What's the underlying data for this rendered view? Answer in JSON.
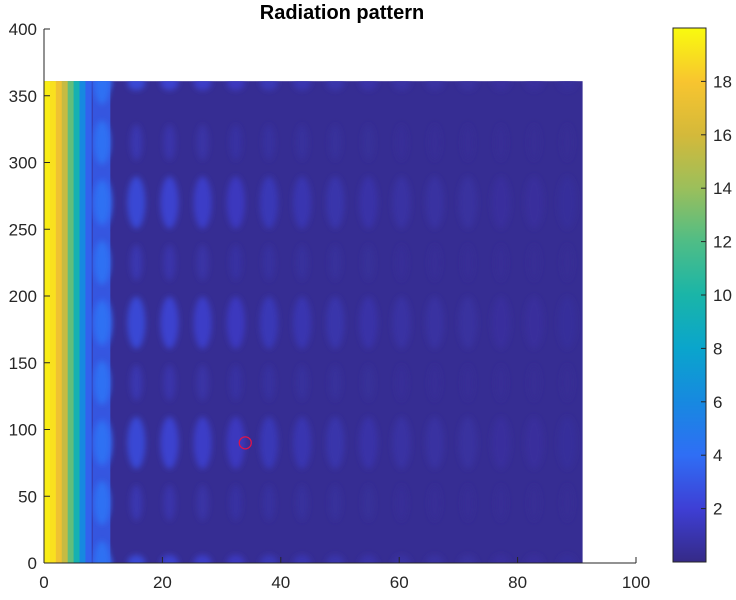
{
  "chart_data": {
    "type": "heatmap",
    "title": "Radiation pattern",
    "xlabel": "",
    "ylabel": "",
    "xlim": [
      0,
      100
    ],
    "ylim": [
      0,
      400
    ],
    "x_ticks": [
      0,
      20,
      40,
      60,
      80,
      100
    ],
    "y_ticks": [
      0,
      50,
      100,
      150,
      200,
      250,
      300,
      350,
      400
    ],
    "data_extent": {
      "x": [
        0,
        91
      ],
      "y": [
        0,
        361
      ]
    },
    "colormap": "parula",
    "color_range": [
      0,
      20
    ],
    "colorbar_ticks": [
      2,
      4,
      6,
      8,
      10,
      12,
      14,
      16,
      18
    ],
    "colorbar_location": "right",
    "grid": false,
    "edge_column_values": [
      {
        "x": 0.5,
        "value": 19.5
      },
      {
        "x": 1.5,
        "value": 19.0
      },
      {
        "x": 2.5,
        "value": 17.5
      },
      {
        "x": 3.5,
        "value": 15.5
      },
      {
        "x": 4.5,
        "value": 12.5
      },
      {
        "x": 5.5,
        "value": 9.5
      },
      {
        "x": 6.5,
        "value": 6.0
      },
      {
        "x": 7.5,
        "value": 3.5
      }
    ],
    "lobe_rows_deg": [
      0,
      90,
      180,
      270,
      360
    ],
    "marker": {
      "x": 34,
      "y": 90,
      "shape": "circle",
      "color": "#e0144a"
    },
    "background_value": 0.3
  }
}
